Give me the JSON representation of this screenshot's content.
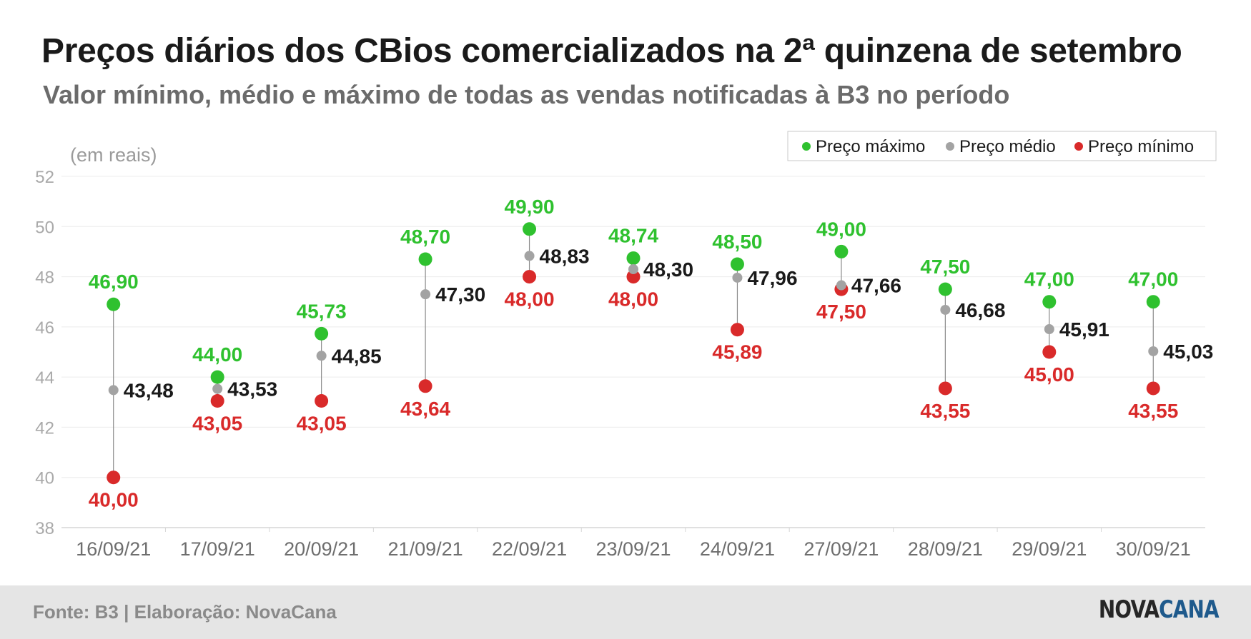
{
  "header": {
    "title": "Preços diários dos CBios comercializados na 2ª quinzena de setembro",
    "subtitle": "Valor mínimo, médio e máximo de todas as vendas notificadas à B3 no período"
  },
  "footer": {
    "source": "Fonte: B3 | Elaboração: NovaCana",
    "logo_part1": "NOVA",
    "logo_part2": "CANA"
  },
  "colors": {
    "max": "#2fc12f",
    "avg": "#a3a3a3",
    "min": "#d92a2a",
    "max_label": "#2fc12f",
    "avg_label": "#1a1a1a",
    "min_label": "#d92a2a"
  },
  "chart_data": {
    "type": "scatter",
    "unit_label": "(em reais)",
    "categories": [
      "16/09/21",
      "17/09/21",
      "20/09/21",
      "21/09/21",
      "22/09/21",
      "23/09/21",
      "24/09/21",
      "27/09/21",
      "28/09/21",
      "29/09/21",
      "30/09/21"
    ],
    "ylim": [
      38,
      52
    ],
    "yticks": [
      38,
      40,
      42,
      44,
      46,
      48,
      50,
      52
    ],
    "grid": true,
    "legend_position": "top-right",
    "series": [
      {
        "key": "max",
        "name": "Preço máximo",
        "values": [
          46.9,
          44.0,
          45.73,
          48.7,
          49.9,
          48.74,
          48.5,
          49.0,
          47.5,
          47.0,
          47.0
        ],
        "labels": [
          "46,90",
          "44,00",
          "45,73",
          "48,70",
          "49,90",
          "48,74",
          "48,50",
          "49,00",
          "47,50",
          "47,00",
          "47,00"
        ]
      },
      {
        "key": "avg",
        "name": "Preço médio",
        "values": [
          43.48,
          43.53,
          44.85,
          47.3,
          48.83,
          48.3,
          47.96,
          47.66,
          46.68,
          45.91,
          45.03
        ],
        "labels": [
          "43,48",
          "43,53",
          "44,85",
          "47,30",
          "48,83",
          "48,30",
          "47,96",
          "47,66",
          "46,68",
          "45,91",
          "45,03"
        ]
      },
      {
        "key": "min",
        "name": "Preço mínimo",
        "values": [
          40.0,
          43.05,
          43.05,
          43.64,
          48.0,
          48.0,
          45.89,
          47.5,
          43.55,
          45.0,
          43.55
        ],
        "labels": [
          "40,00",
          "43,05",
          "43,05",
          "43,64",
          "48,00",
          "48,00",
          "45,89",
          "47,50",
          "43,55",
          "45,00",
          "43,55"
        ]
      }
    ]
  }
}
